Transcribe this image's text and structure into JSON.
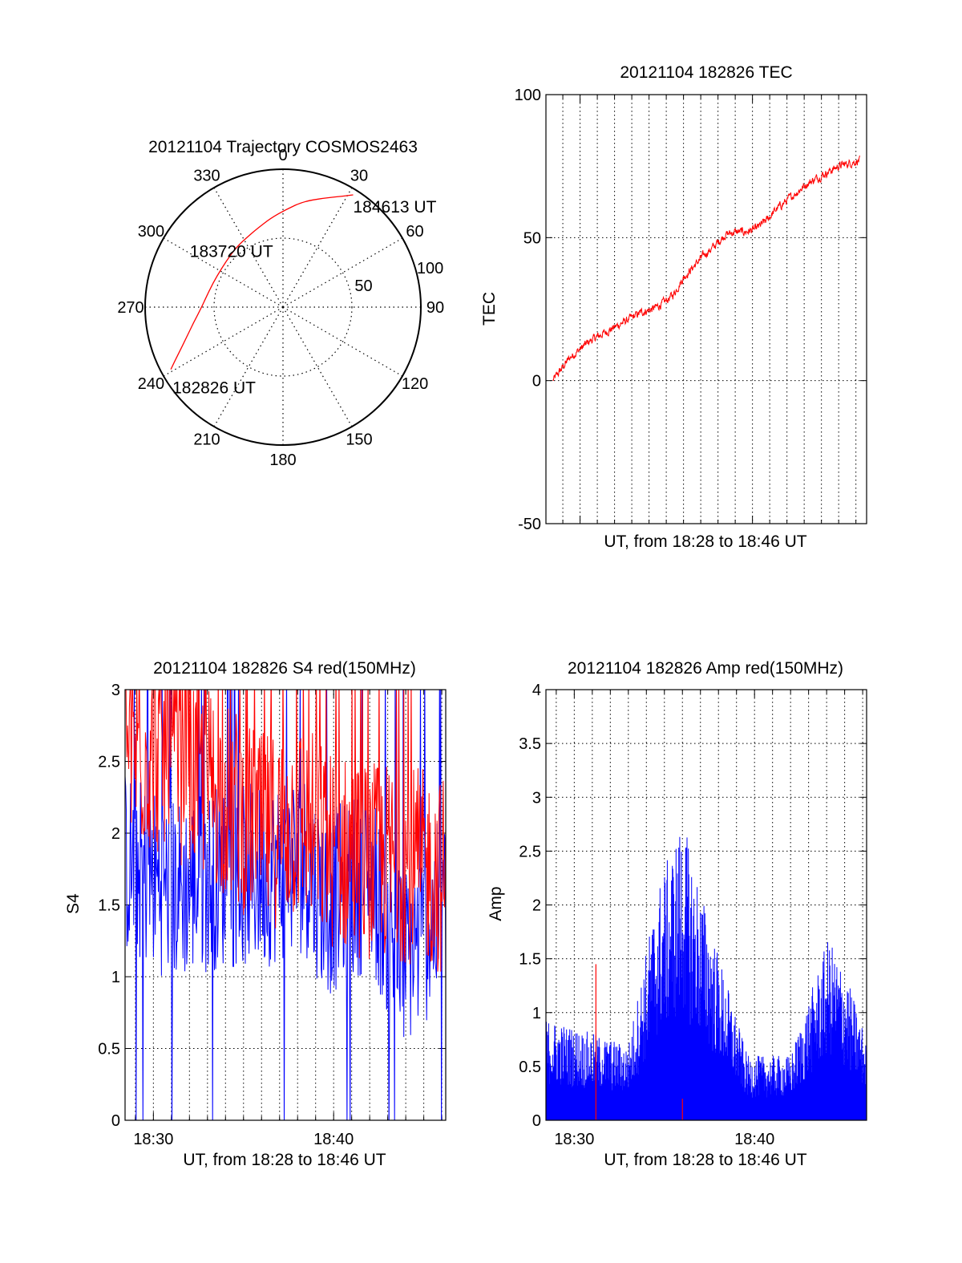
{
  "colors": {
    "red": "#ff0000",
    "blue": "#0000ff",
    "axis": "#000000",
    "grid": "#000000",
    "background": "#ffffff"
  },
  "chart_data": [
    {
      "type": "polar",
      "title": "20121104 Trajectory COSMOS2463",
      "angle_labels": [
        "0",
        "30",
        "60",
        "90",
        "120",
        "150",
        "180",
        "210",
        "240",
        "270",
        "300",
        "330"
      ],
      "radial_labels": [
        "50",
        "100"
      ],
      "radial_max": 100,
      "grid": true,
      "series": [
        {
          "color": "#ff0000",
          "points": [
            {
              "az": 241,
              "r": 93
            },
            {
              "az": 246,
              "r": 83
            },
            {
              "az": 252,
              "r": 74
            },
            {
              "az": 260,
              "r": 66
            },
            {
              "az": 270,
              "r": 59
            },
            {
              "az": 282,
              "r": 55
            },
            {
              "az": 295,
              "r": 53
            },
            {
              "az": 309,
              "r": 53
            },
            {
              "az": 322,
              "r": 55
            },
            {
              "az": 333,
              "r": 57
            },
            {
              "az": 342,
              "r": 60
            },
            {
              "az": 352,
              "r": 65
            },
            {
              "az": 2,
              "r": 71
            },
            {
              "az": 11,
              "r": 78
            },
            {
              "az": 20,
              "r": 84
            },
            {
              "az": 28,
              "r": 91
            },
            {
              "az": 32,
              "r": 96
            }
          ]
        }
      ],
      "annotations": [
        {
          "text": "182826 UT",
          "az": 241,
          "r": 93
        },
        {
          "text": "183720 UT",
          "az": 305,
          "r": 47
        },
        {
          "text": "184613 UT",
          "az": 32,
          "r": 96
        }
      ]
    },
    {
      "type": "line",
      "title": "20121104 182826 TEC",
      "xlabel": "UT, from 18:28 to 18:46 UT",
      "ylabel": "TEC",
      "ylim": [
        -50,
        100
      ],
      "yticks": [
        -50,
        0,
        50,
        100
      ],
      "xlim": [
        18.467,
        18.777
      ],
      "grid": true,
      "series": [
        {
          "color": "#ff0000",
          "x": [
            18.4738,
            18.49,
            18.51,
            18.53,
            18.55,
            18.56,
            18.57,
            18.58,
            18.59,
            18.6,
            18.61,
            18.62,
            18.63,
            18.64,
            18.65,
            18.66,
            18.67,
            18.68,
            18.69,
            18.7,
            18.71,
            18.72,
            18.73,
            18.74,
            18.75,
            18.76,
            18.7703
          ],
          "y": [
            0,
            8,
            14,
            18,
            22,
            24,
            25,
            27,
            30,
            36,
            40,
            44,
            47,
            51,
            52,
            52,
            53,
            56,
            60,
            63,
            66,
            69,
            71,
            73,
            75,
            76,
            77
          ]
        }
      ]
    },
    {
      "type": "line",
      "title": "20121104 182826 S4 red(150MHz)",
      "xlabel": "UT, from 18:28 to 18:46 UT",
      "ylabel": "S4",
      "ylim": [
        0,
        3
      ],
      "yticks": [
        "0",
        "0.5",
        "1",
        "1.5",
        "2",
        "2.5",
        "3"
      ],
      "xticks": [
        "18:30",
        "18:40"
      ],
      "xlim": [
        18.4738,
        18.7703
      ],
      "grid": true,
      "series": [
        {
          "color": "#0000ff",
          "x": [
            18.4738,
            18.52,
            18.56,
            18.6,
            18.64,
            18.66,
            18.7,
            18.73,
            18.7703
          ],
          "y": [
            1.8,
            1.6,
            1.7,
            1.7,
            1.8,
            1.5,
            1.7,
            1.1,
            1.5
          ]
        },
        {
          "color": "#ff0000",
          "x": [
            18.4738,
            18.52,
            18.56,
            18.6,
            18.64,
            18.66,
            18.7,
            18.73,
            18.7703
          ],
          "y": [
            2.6,
            2.5,
            2.3,
            2.0,
            2.1,
            1.9,
            1.8,
            1.8,
            1.7
          ]
        }
      ]
    },
    {
      "type": "line",
      "title": "20121104 182826 Amp red(150MHz)",
      "xlabel": "UT, from 18:28 to 18:46 UT",
      "ylabel": "Amp",
      "ylim": [
        0,
        4
      ],
      "yticks": [
        "0",
        "0.5",
        "1",
        "1.5",
        "2",
        "2.5",
        "3",
        "3.5",
        "4"
      ],
      "xticks": [
        "18:30",
        "18:40"
      ],
      "xlim": [
        18.4738,
        18.7703
      ],
      "grid": true,
      "series": [
        {
          "color": "#0000ff",
          "x": [
            18.4738,
            18.55,
            18.578,
            18.6,
            18.625,
            18.66,
            18.7,
            18.735,
            18.75,
            18.7703
          ],
          "y": [
            0.95,
            0.7,
            2.2,
            2.8,
            1.85,
            0.6,
            0.6,
            1.7,
            1.4,
            0.75
          ]
        },
        {
          "color": "#ff0000",
          "x": [
            18.52,
            18.6
          ],
          "y": [
            1.45,
            0.2
          ]
        }
      ]
    }
  ]
}
